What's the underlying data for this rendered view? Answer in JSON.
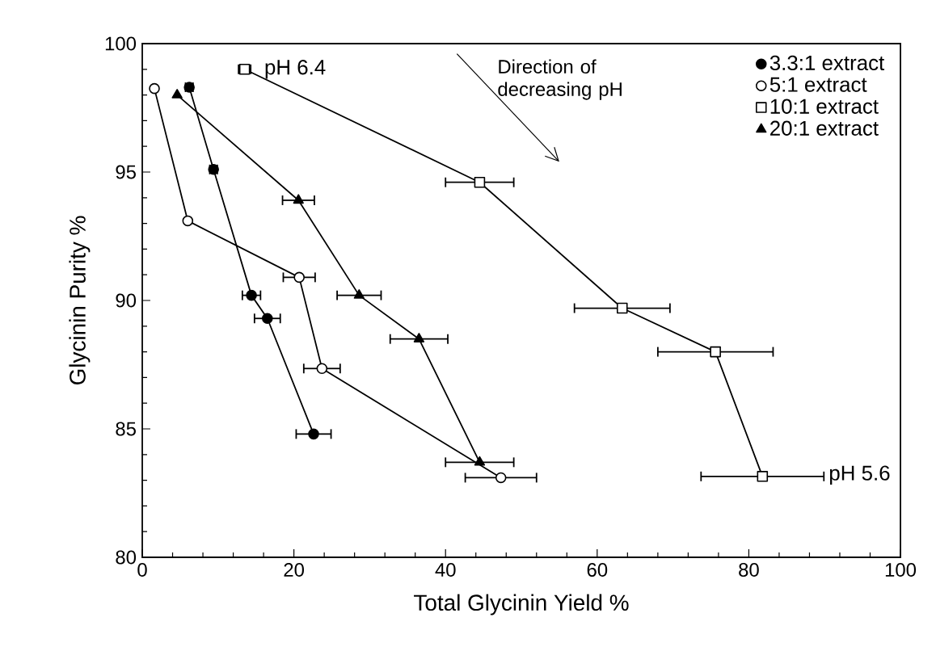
{
  "chart_data": {
    "type": "line",
    "xlabel": "Total Glycinin Yield %",
    "ylabel": "Glycinin Purity %",
    "xlim": [
      0,
      100
    ],
    "ylim": [
      80,
      100
    ],
    "xticks": [
      0,
      20,
      40,
      60,
      80,
      100
    ],
    "yticks": [
      80,
      85,
      90,
      95,
      100
    ],
    "grid": false,
    "legend": "top right",
    "series": [
      {
        "name": "3.3:1 extract",
        "color": "#000000",
        "marker": "circle",
        "x": [
          6.2,
          9.4,
          14.4,
          16.5,
          22.6
        ],
        "values": [
          98.3,
          95.1,
          90.2,
          89.3,
          84.8
        ],
        "xerrors": [
          0.5,
          0.5,
          1.2,
          1.7,
          2.3
        ]
      },
      {
        "name": "5:1 extract",
        "color": "#000000",
        "marker": "circle",
        "x": [
          1.6,
          6.0,
          20.7,
          23.7,
          47.3
        ],
        "values": [
          98.25,
          93.1,
          90.9,
          87.35,
          83.1
        ],
        "xerrors": [
          null,
          null,
          2.1,
          2.4,
          4.7
        ]
      },
      {
        "name": "10:1 extract",
        "color": "#000000",
        "marker": "square",
        "x": [
          13.5,
          44.5,
          63.3,
          75.6,
          81.8
        ],
        "values": [
          99.0,
          94.6,
          89.7,
          88.0,
          83.15
        ],
        "xerrors": [
          0.8,
          4.5,
          6.3,
          7.6,
          8.1
        ]
      },
      {
        "name": "20:1 extract",
        "color": "#000000",
        "marker": "triangle",
        "x": [
          4.6,
          20.6,
          28.6,
          36.5,
          44.5
        ],
        "values": [
          98.0,
          93.9,
          90.2,
          88.5,
          83.7
        ],
        "xerrors": [
          null,
          2.1,
          2.9,
          3.8,
          4.5
        ]
      }
    ],
    "annotations": [
      {
        "text": "pH 6.4",
        "x": 13.5,
        "y": 99.0
      },
      "pH 5.6",
      "Direction of decreasing pH"
    ]
  }
}
